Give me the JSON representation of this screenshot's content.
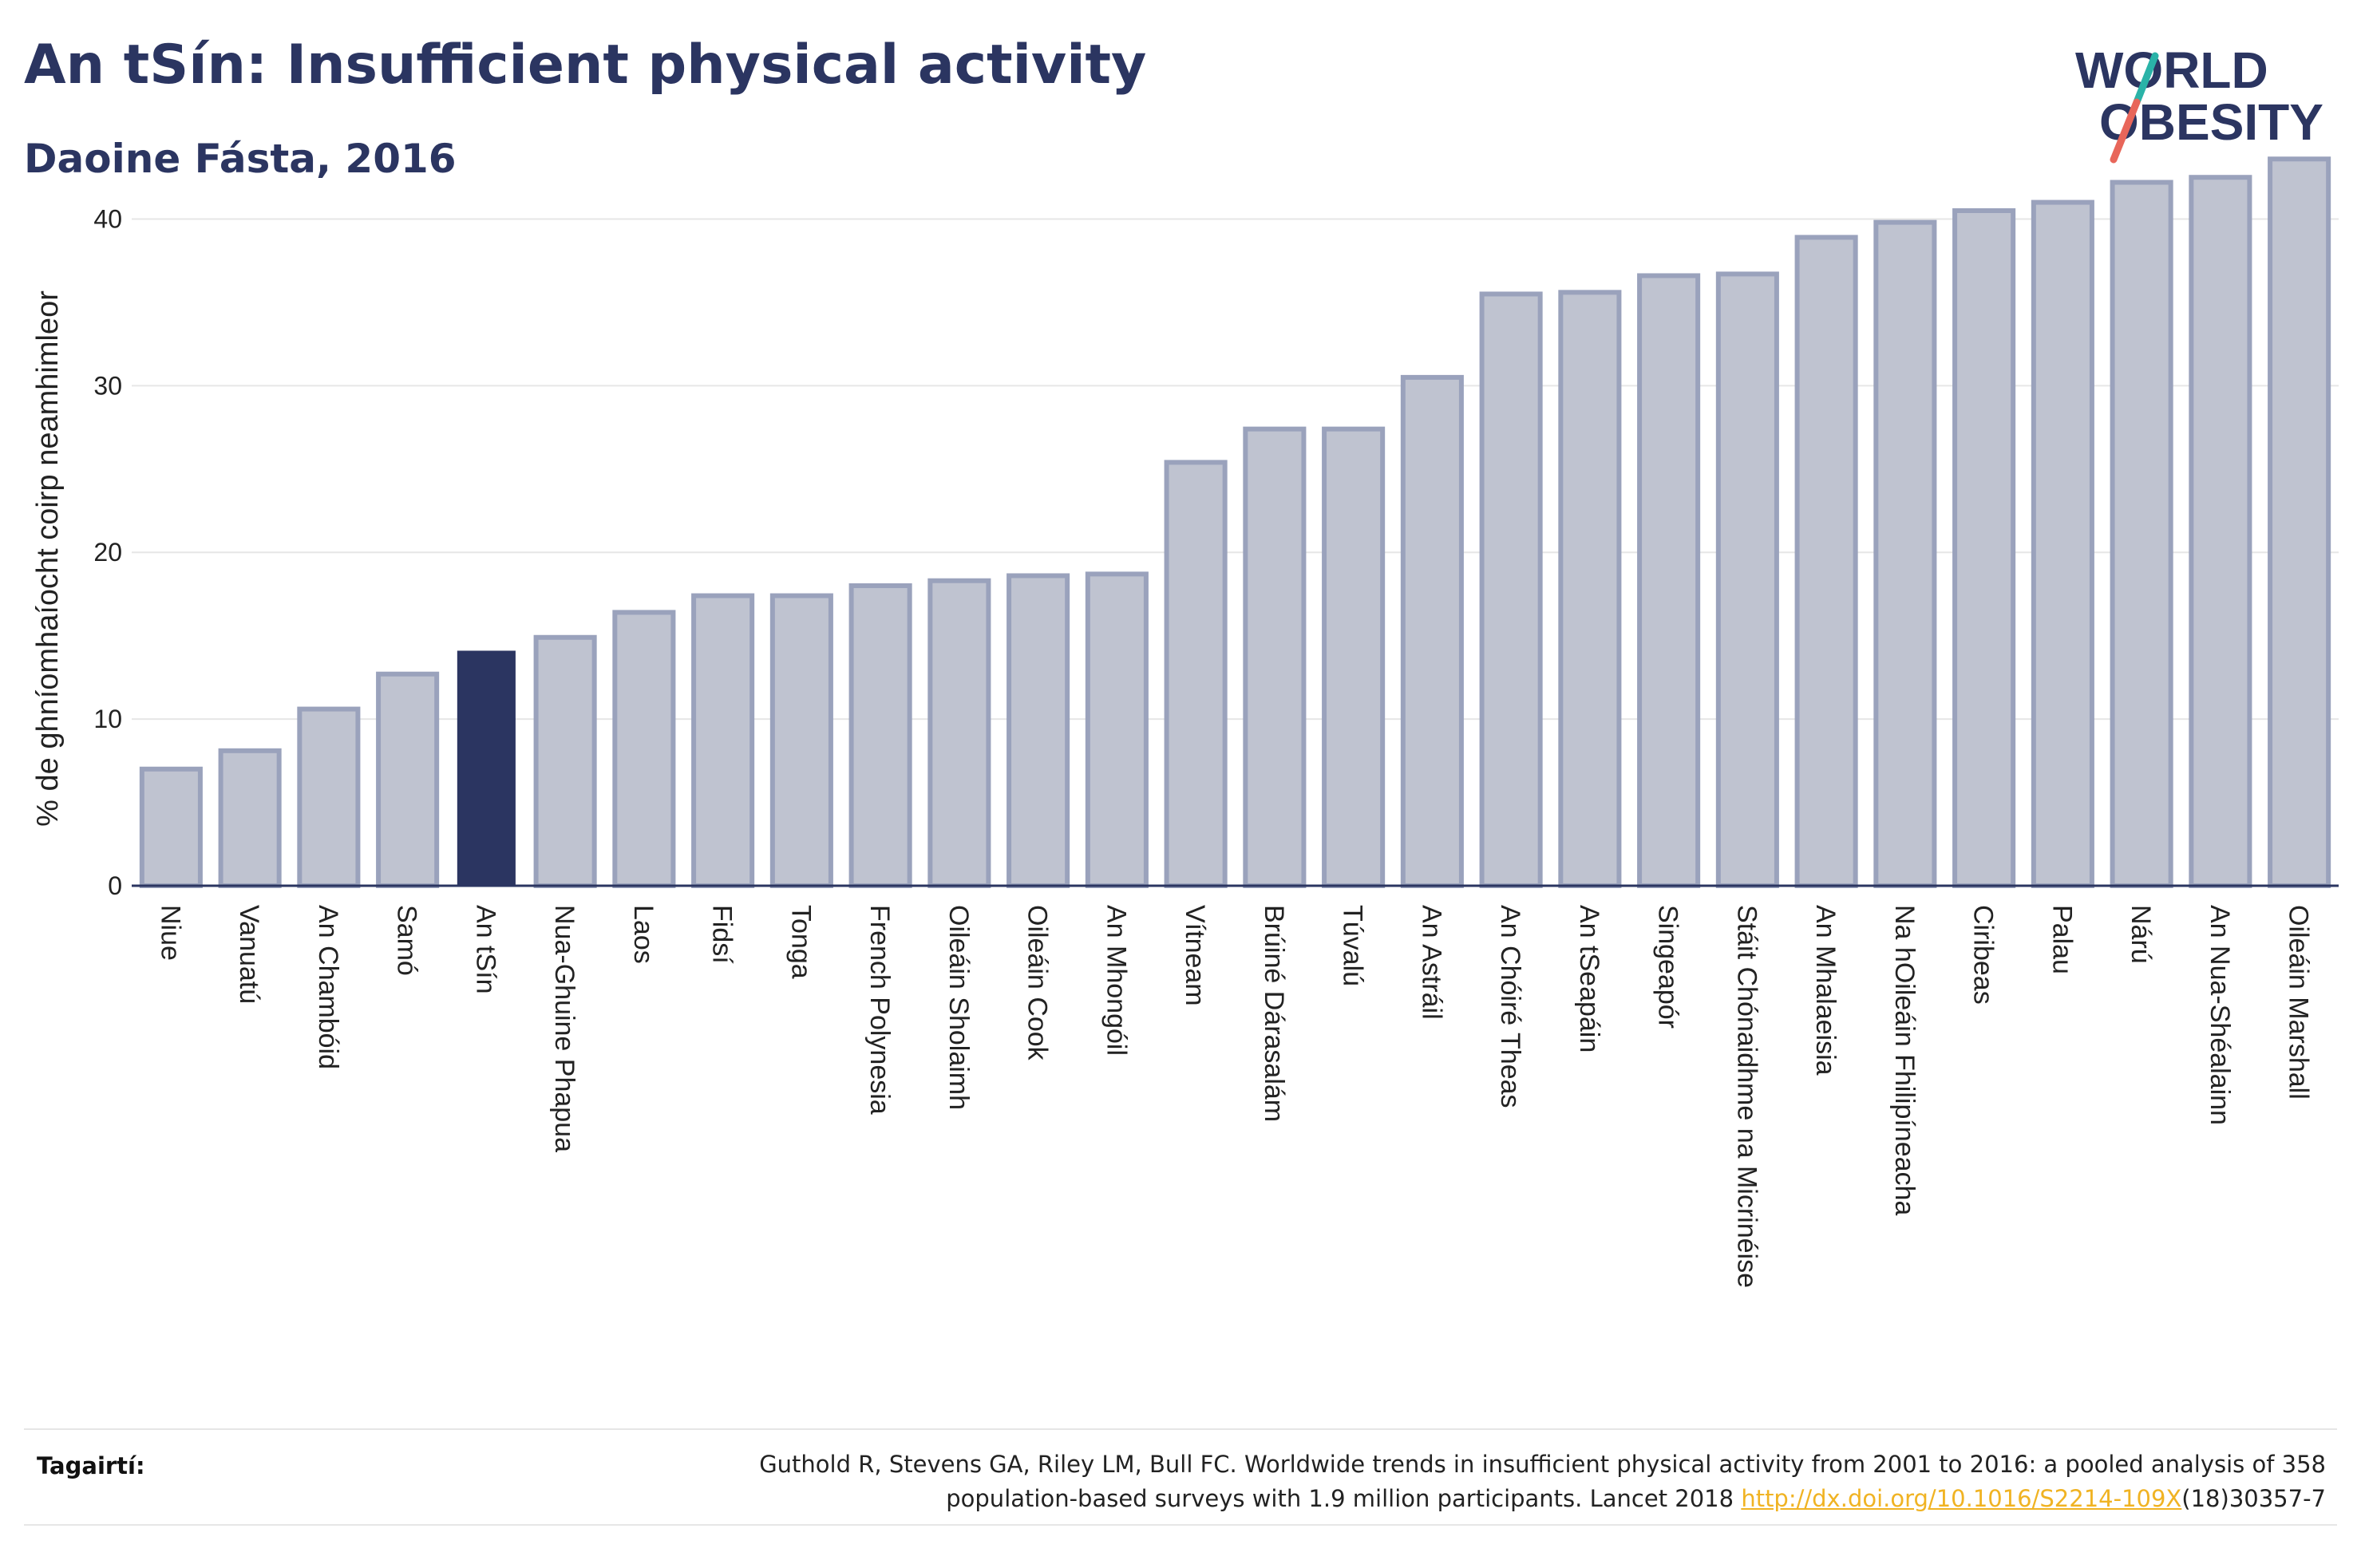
{
  "header": {
    "title": "An tSín: Insufficient physical activity",
    "subtitle": "Daoine Fásta, 2016"
  },
  "logo": {
    "line1": "WORLD",
    "line2": "OBESITY",
    "colors": {
      "text": "#2b3561",
      "slash_top": "#2ab3a8",
      "slash_bottom": "#e8665a"
    }
  },
  "colors": {
    "bar": "#bfc3d0",
    "bar_stroke": "#9aa2bc",
    "highlight": "#2b3561",
    "axis": "#2b3561",
    "grid": "#e6e6e6"
  },
  "chart_data": {
    "type": "bar",
    "title": "An tSín: Insufficient physical activity",
    "subtitle": "Daoine Fásta, 2016",
    "xlabel": "",
    "ylabel": "% de ghníomhaíocht coirp neamhimleor",
    "ylim": [
      0,
      45
    ],
    "yticks": [
      0,
      10,
      20,
      30,
      40
    ],
    "grid": true,
    "highlight": "An tSín",
    "categories": [
      "Niue",
      "Vanuatú",
      "An Chambóid",
      "Samó",
      "An tSín",
      "Nua-Ghuine Phapua",
      "Laos",
      "Fidsí",
      "Tonga",
      "French Polynesia",
      "Oileáin Sholaimh",
      "Oileáin Cook",
      "An Mhongóil",
      "Vítneam",
      "Brúiné Dárasalám",
      "Túvalú",
      "An Astráil",
      "An Chóiré Theas",
      "An tSeapáin",
      "Singeapór",
      "Stáit Chónaidhme na Micrinéise",
      "An Mhalaeisia",
      "Na hOileáin Fhilipíneacha",
      "Ciribeas",
      "Palau",
      "Nárú",
      "An Nua-Shéalainn",
      "Oileáin Marshall"
    ],
    "values": [
      7.0,
      8.1,
      10.6,
      12.7,
      14.1,
      14.9,
      16.4,
      17.4,
      17.4,
      18.0,
      18.3,
      18.6,
      18.7,
      25.4,
      27.4,
      27.4,
      30.5,
      35.5,
      35.6,
      36.6,
      36.7,
      38.9,
      39.8,
      40.5,
      41.0,
      42.2,
      42.5,
      43.6
    ]
  },
  "references": {
    "label": "Tagairtí:",
    "text_line1": "Guthold R, Stevens GA, Riley LM, Bull FC. Worldwide trends in insufficient physical activity from 2001 to 2016: a pooled analysis of 358",
    "text_line2_before": "population-based surveys with 1.9 million participants. Lancet 2018 ",
    "link": "http://dx.doi.org/10.1016/S2214-109X",
    "text_after": "(18)30357-7"
  }
}
